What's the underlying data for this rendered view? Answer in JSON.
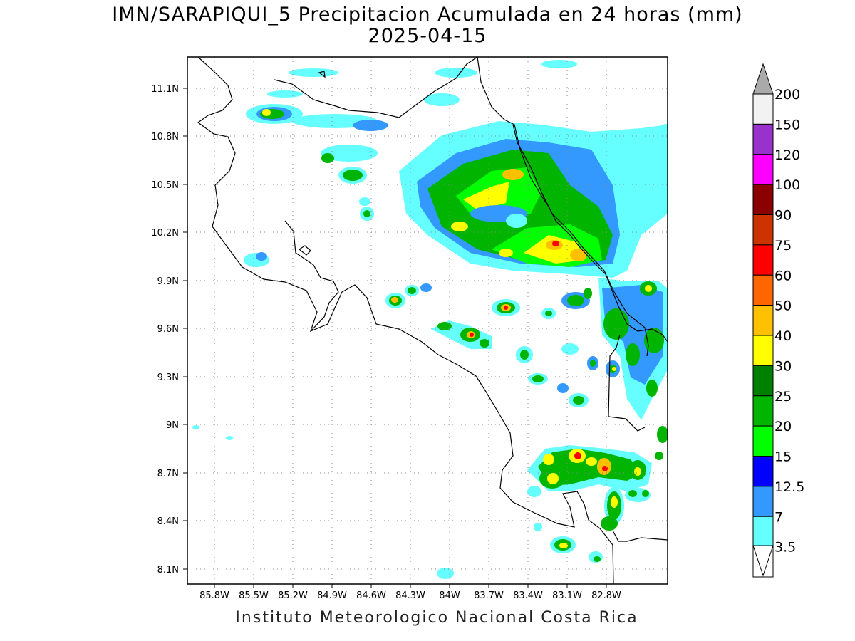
{
  "title_line1": "IMN/SARAPIQUI_5 Precipitacion Acumulada en 24 horas (mm)",
  "title_line2": "2025-04-15",
  "footer": "Instituto Meteorologico Nacional Costa Rica",
  "lon_ticks": [
    "85.8W",
    "85.5W",
    "85.2W",
    "84.9W",
    "84.6W",
    "84.3W",
    "84W",
    "83.7W",
    "83.4W",
    "83.1W",
    "82.8W"
  ],
  "lat_ticks": [
    "11.1N",
    "10.8N",
    "10.5N",
    "10.2N",
    "9.9N",
    "9.6N",
    "9.3N",
    "9N",
    "8.7N",
    "8.4N",
    "8.1N"
  ],
  "colorbar": {
    "levels": [
      "200",
      "150",
      "120",
      "100",
      "90",
      "75",
      "60",
      "50",
      "40",
      "30",
      "25",
      "20",
      "15",
      "12.5",
      "7",
      "3.5"
    ],
    "colors": [
      "#f2f2f2",
      "#9932cc",
      "#ff00ff",
      "#8b0000",
      "#cc3300",
      "#ff0000",
      "#ff6600",
      "#ffc000",
      "#ffff00",
      "#008000",
      "#00b400",
      "#00ff00",
      "#0000ff",
      "#3399ff",
      "#66ffff",
      "#ffffff"
    ],
    "top_arrow_color": "#aaaaaa"
  },
  "precip_palette": {
    "light_cyan": "#66ffff",
    "blue_7": "#3399ff",
    "blue_12": "#0000ff",
    "green_15": "#00ff00",
    "green_20": "#00b400",
    "green_25": "#008000",
    "yellow_30": "#ffff00",
    "gold_40": "#ffc000",
    "red_60": "#ff0000"
  }
}
